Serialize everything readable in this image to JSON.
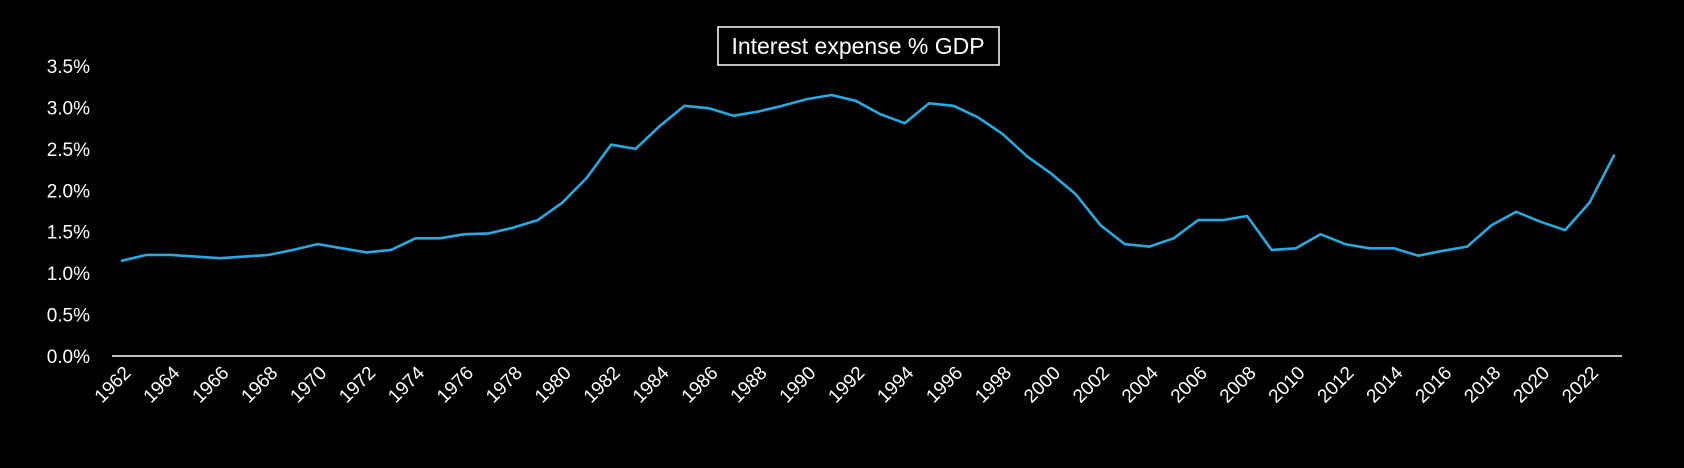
{
  "chart_data": {
    "type": "line",
    "title": "Interest expense % GDP",
    "xlabel": "",
    "ylabel": "",
    "ylim": [
      0,
      3.5
    ],
    "yticks": [
      "0.0%",
      "0.5%",
      "1.0%",
      "1.5%",
      "2.0%",
      "2.5%",
      "3.0%",
      "3.5%"
    ],
    "xtick_labels": [
      "1962",
      "1964",
      "1966",
      "1968",
      "1970",
      "1972",
      "1974",
      "1976",
      "1978",
      "1980",
      "1982",
      "1984",
      "1986",
      "1988",
      "1990",
      "1992",
      "1994",
      "1996",
      "1998",
      "2000",
      "2002",
      "2004",
      "2006",
      "2008",
      "2010",
      "2012",
      "2014",
      "2016",
      "2018",
      "2020",
      "2022"
    ],
    "grid": false,
    "legend": "none",
    "line_color": "#29A9E0",
    "x": [
      1962,
      1963,
      1964,
      1965,
      1966,
      1967,
      1968,
      1969,
      1970,
      1971,
      1972,
      1973,
      1974,
      1975,
      1976,
      1977,
      1978,
      1979,
      1980,
      1981,
      1982,
      1983,
      1984,
      1985,
      1986,
      1987,
      1988,
      1989,
      1990,
      1991,
      1992,
      1993,
      1994,
      1995,
      1996,
      1997,
      1998,
      1999,
      2000,
      2001,
      2002,
      2003,
      2004,
      2005,
      2006,
      2007,
      2008,
      2009,
      2010,
      2011,
      2012,
      2013,
      2014,
      2015,
      2016,
      2017,
      2018,
      2019,
      2020,
      2021,
      2022,
      2023
    ],
    "series": [
      {
        "values": [
          1.15,
          1.22,
          1.22,
          1.2,
          1.18,
          1.2,
          1.22,
          1.28,
          1.35,
          1.3,
          1.25,
          1.28,
          1.42,
          1.42,
          1.47,
          1.48,
          1.55,
          1.64,
          1.85,
          2.15,
          2.55,
          2.5,
          2.78,
          3.02,
          2.99,
          2.9,
          2.95,
          3.02,
          3.1,
          3.15,
          3.08,
          2.92,
          2.81,
          3.05,
          3.02,
          2.88,
          2.68,
          2.41,
          2.2,
          1.95,
          1.58,
          1.35,
          1.32,
          1.42,
          1.64,
          1.64,
          1.69,
          1.28,
          1.3,
          1.47,
          1.35,
          1.3,
          1.3,
          1.21,
          1.27,
          1.32,
          1.58,
          1.74,
          1.62,
          1.52,
          1.85,
          2.42
        ]
      }
    ]
  }
}
